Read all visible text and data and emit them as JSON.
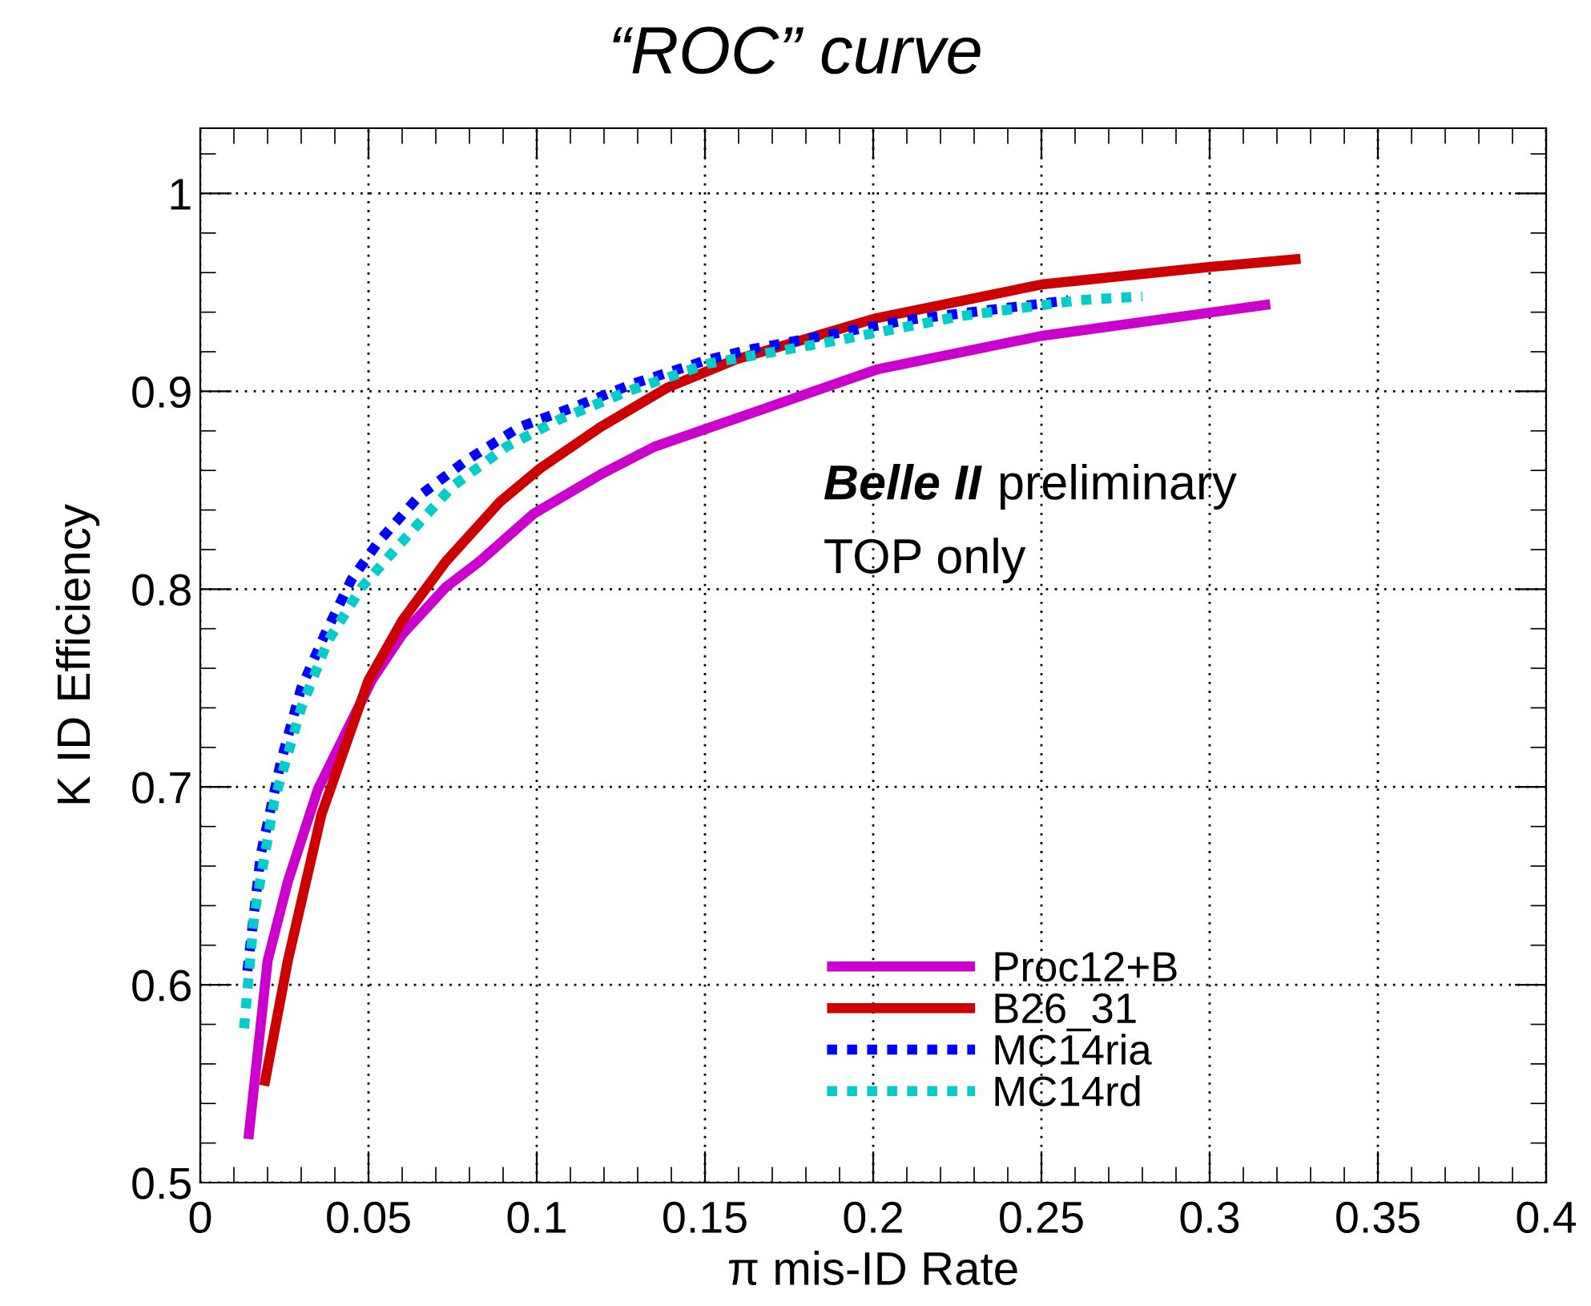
{
  "chart_data": {
    "type": "line",
    "title": "“ROC” curve",
    "xlabel": "π mis-ID Rate",
    "ylabel": "K ID Efficiency",
    "xlim": [
      0,
      0.4
    ],
    "xticks": [
      0,
      0.05,
      0.1,
      0.15,
      0.2,
      0.25,
      0.3,
      0.35,
      0.4
    ],
    "ylim": [
      0.5,
      1.033
    ],
    "yticks": [
      0.5,
      0.6,
      0.7,
      0.8,
      0.9,
      1
    ],
    "grid": true,
    "legend": "center right",
    "marker": "none",
    "annotations": [
      "Belle II",
      "preliminary",
      "TOP only"
    ],
    "series": [
      {
        "name": "Proc12+B",
        "color": "#cc00cc",
        "line_style": "solid",
        "x": [
          0.0143,
          0.02,
          0.026,
          0.035,
          0.044,
          0.051,
          0.06,
          0.073,
          0.083,
          0.099,
          0.119,
          0.135,
          0.169,
          0.179,
          0.201,
          0.25,
          0.318
        ],
        "values": [
          0.522,
          0.612,
          0.652,
          0.699,
          0.73,
          0.754,
          0.777,
          0.801,
          0.814,
          0.838,
          0.858,
          0.872,
          0.892,
          0.898,
          0.911,
          0.928,
          0.944
        ]
      },
      {
        "name": "B26_31",
        "color": "#cc0000",
        "line_style": "solid",
        "x": [
          0.019,
          0.026,
          0.036,
          0.05,
          0.06,
          0.073,
          0.089,
          0.101,
          0.119,
          0.139,
          0.159,
          0.201,
          0.25,
          0.301,
          0.327
        ],
        "values": [
          0.549,
          0.612,
          0.686,
          0.754,
          0.784,
          0.814,
          0.844,
          0.861,
          0.882,
          0.902,
          0.916,
          0.937,
          0.954,
          0.963,
          0.967
        ]
      },
      {
        "name": "MC14ria",
        "color": "#0000ff",
        "line_style": "dotted",
        "x": [
          0.014,
          0.018,
          0.024,
          0.03,
          0.037,
          0.045,
          0.053,
          0.065,
          0.079,
          0.095,
          0.111,
          0.129,
          0.151,
          0.163,
          0.21,
          0.258
        ],
        "values": [
          0.607,
          0.666,
          0.713,
          0.75,
          0.777,
          0.805,
          0.824,
          0.847,
          0.865,
          0.882,
          0.892,
          0.904,
          0.916,
          0.921,
          0.936,
          0.946
        ]
      },
      {
        "name": "MC14rd",
        "color": "#00cccc",
        "line_style": "dotted",
        "x": [
          0.013,
          0.016,
          0.022,
          0.03,
          0.038,
          0.048,
          0.06,
          0.075,
          0.091,
          0.107,
          0.127,
          0.151,
          0.187,
          0.226,
          0.261,
          0.28
        ],
        "values": [
          0.578,
          0.635,
          0.693,
          0.74,
          0.774,
          0.801,
          0.824,
          0.852,
          0.872,
          0.886,
          0.9,
          0.914,
          0.925,
          0.938,
          0.946,
          0.948
        ]
      }
    ]
  }
}
